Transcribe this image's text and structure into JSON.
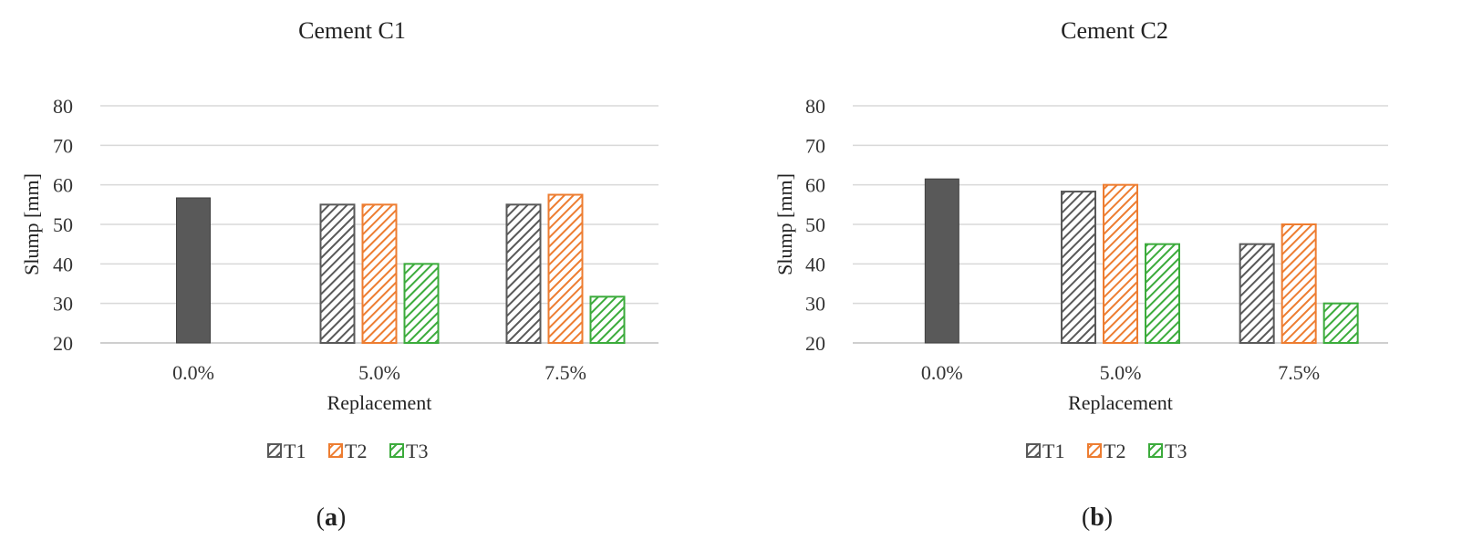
{
  "chart_data": [
    {
      "type": "bar",
      "title": "Cement C1",
      "xlabel": "Replacement",
      "ylabel": "Slump [mm]",
      "ylim": [
        20,
        80
      ],
      "yticks": [
        "20",
        "30",
        "40",
        "50",
        "60",
        "70",
        "80"
      ],
      "categories": [
        "0.0%",
        "5.0%",
        "7.5%"
      ],
      "reference": {
        "category": "0.0%",
        "value": 56.7,
        "color": "#595959"
      },
      "series": [
        {
          "name": "T1",
          "values": [
            null,
            55,
            55
          ],
          "color": "#595959"
        },
        {
          "name": "T2",
          "values": [
            null,
            55,
            57.5
          ],
          "color": "#ED7D31"
        },
        {
          "name": "T3",
          "values": [
            null,
            40,
            31.7
          ],
          "color": "#3CAB3C"
        }
      ],
      "grid": true,
      "legend_position": "bottom",
      "panel_label": "a"
    },
    {
      "type": "bar",
      "title": "Cement C2",
      "xlabel": "Replacement",
      "ylabel": "Slump [mm]",
      "ylim": [
        20,
        80
      ],
      "yticks": [
        "20",
        "30",
        "40",
        "50",
        "60",
        "70",
        "80"
      ],
      "categories": [
        "0.0%",
        "5.0%",
        "7.5%"
      ],
      "reference": {
        "category": "0.0%",
        "value": 61.5,
        "color": "#595959"
      },
      "series": [
        {
          "name": "T1",
          "values": [
            null,
            58.3,
            45
          ],
          "color": "#595959"
        },
        {
          "name": "T2",
          "values": [
            null,
            60,
            50
          ],
          "color": "#ED7D31"
        },
        {
          "name": "T3",
          "values": [
            null,
            45,
            30
          ],
          "color": "#3CAB3C"
        }
      ],
      "grid": true,
      "legend_position": "bottom",
      "panel_label": "b"
    }
  ]
}
